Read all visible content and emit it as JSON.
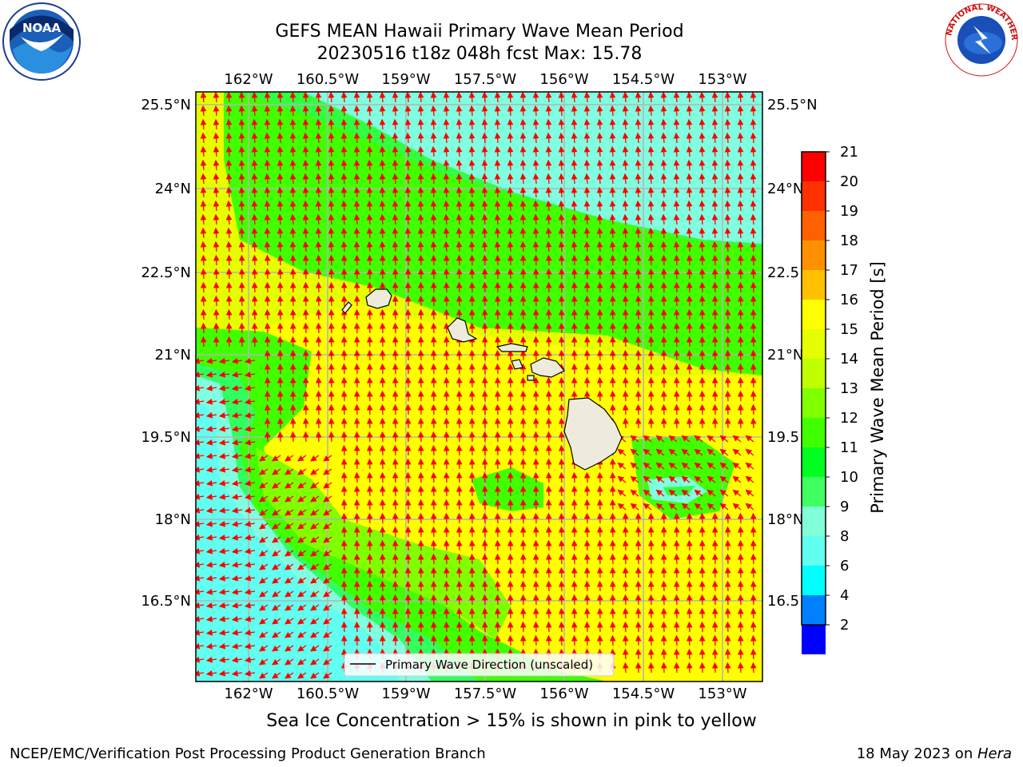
{
  "header": {
    "title_line1": "GEFS MEAN Hawaii Primary Wave Mean Period",
    "title_line2": "20230516 t18z 048h fcst   Max: 15.78"
  },
  "logos": {
    "left": {
      "name": "noaa-logo",
      "text": "NOAA"
    },
    "right": {
      "name": "nws-logo",
      "text": "NATIONAL WEATHER SERVICE"
    }
  },
  "map": {
    "lon_ticks": [
      "162°W",
      "160.5°W",
      "159°W",
      "157.5°W",
      "156°W",
      "154.5°W",
      "153°W"
    ],
    "lat_ticks": [
      "25.5°N",
      "24°N",
      "22.5°N",
      "21°N",
      "19.5°N",
      "18°N",
      "16.5°N"
    ],
    "lat_ticks_right": [
      "25.5°N",
      "24°N",
      "22.5",
      "21°N",
      "19.5",
      "18°N",
      "16.5"
    ],
    "legend_label": "Primary Wave Direction (unscaled)",
    "land_color": "#efebdc"
  },
  "colorbar": {
    "label": "Primary Wave Mean Period [s]",
    "ticks": [
      "21",
      "20",
      "19",
      "18",
      "17",
      "16",
      "15",
      "14",
      "13",
      "12",
      "11",
      "10",
      "9",
      "8",
      "6",
      "4",
      "2"
    ],
    "colors": [
      "#ff0000",
      "#ff3000",
      "#ff6000",
      "#ff9000",
      "#ffc000",
      "#ffff00",
      "#e6ff00",
      "#bfff00",
      "#80ff00",
      "#40ff00",
      "#00ff20",
      "#40ff60",
      "#80ffd8",
      "#60fff0",
      "#00ffff",
      "#0080ff",
      "#0000ff"
    ]
  },
  "subtitle": "Sea Ice Concentration > 15% is shown in pink to yellow",
  "footer": {
    "left": "NCEP/EMC/Verification Post Processing Product Generation Branch",
    "right_date": "18 May 2023 on ",
    "right_host": "Hera"
  }
}
